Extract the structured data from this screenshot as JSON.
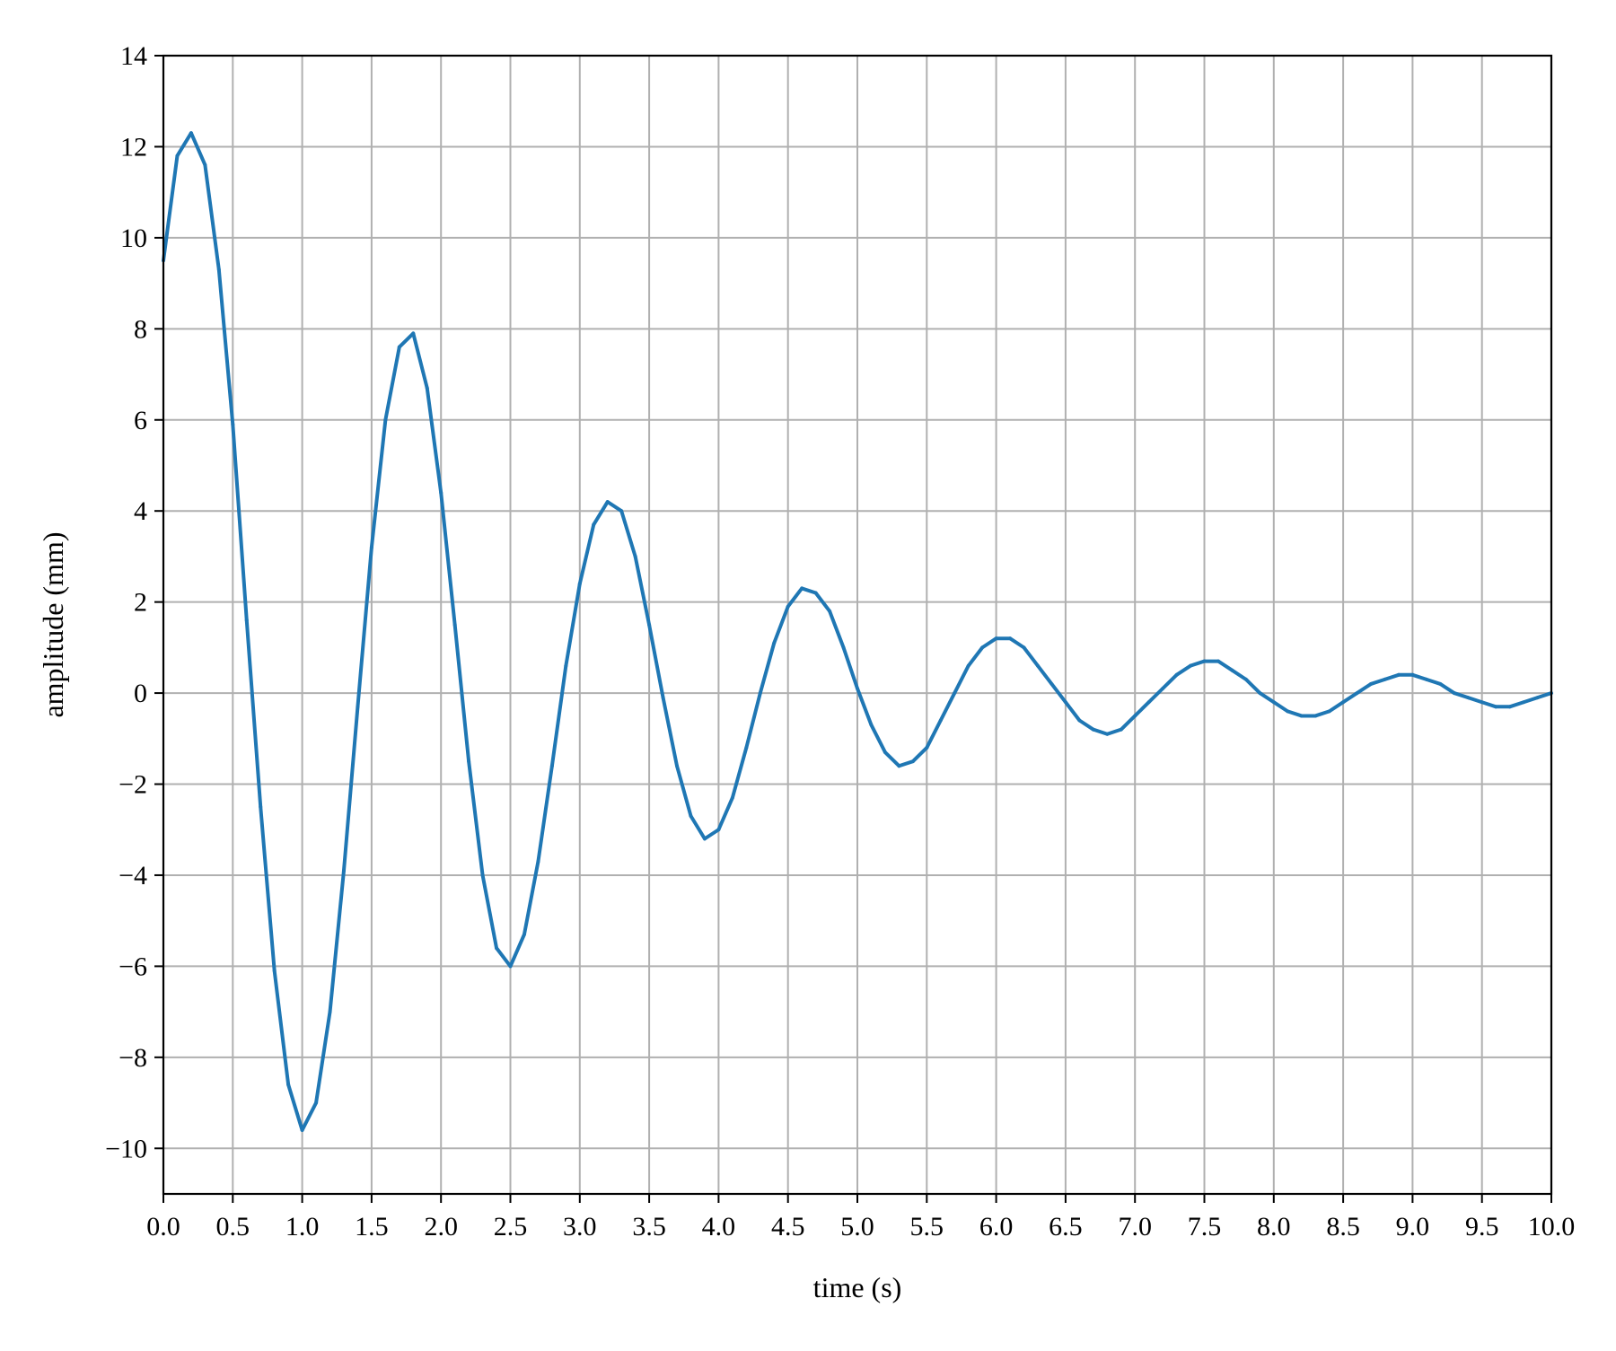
{
  "chart_data": {
    "type": "line",
    "title": "",
    "xlabel": "time (s)",
    "ylabel": "amplitude (mm)",
    "xlim": [
      0,
      10
    ],
    "ylim": [
      -11,
      14
    ],
    "grid": true,
    "legend": "none",
    "x_ticks": [
      "0.0",
      "0.5",
      "1.0",
      "1.5",
      "2.0",
      "2.5",
      "3.0",
      "3.5",
      "4.0",
      "4.5",
      "5.0",
      "5.5",
      "6.0",
      "6.5",
      "7.0",
      "7.5",
      "8.0",
      "8.5",
      "9.0",
      "9.5",
      "10.0"
    ],
    "y_ticks": [
      "14",
      "12",
      "10",
      "8",
      "6",
      "4",
      "2",
      "0",
      "−2",
      "−4",
      "−6",
      "−8",
      "−10"
    ],
    "line_color": "#1f77b4",
    "series": [
      {
        "x": [
          0.0,
          0.1,
          0.2,
          0.3,
          0.4,
          0.5,
          0.6,
          0.7,
          0.8,
          0.9,
          1.0,
          1.1,
          1.2,
          1.3,
          1.4,
          1.5,
          1.6,
          1.7,
          1.8,
          1.9,
          2.0,
          2.1,
          2.2,
          2.3,
          2.4,
          2.5,
          2.6,
          2.7,
          2.8,
          2.9,
          3.0,
          3.1,
          3.2,
          3.3,
          3.4,
          3.5,
          3.6,
          3.7,
          3.8,
          3.9,
          4.0,
          4.1,
          4.2,
          4.3,
          4.4,
          4.5,
          4.6,
          4.7,
          4.8,
          4.9,
          5.0,
          5.1,
          5.2,
          5.3,
          5.4,
          5.5,
          5.6,
          5.7,
          5.8,
          5.9,
          6.0,
          6.1,
          6.2,
          6.3,
          6.4,
          6.5,
          6.6,
          6.7,
          6.8,
          6.9,
          7.0,
          7.1,
          7.2,
          7.3,
          7.4,
          7.5,
          7.6,
          7.7,
          7.8,
          7.9,
          8.0,
          8.1,
          8.2,
          8.3,
          8.4,
          8.5,
          8.6,
          8.7,
          8.8,
          8.9,
          9.0,
          9.1,
          9.2,
          9.3,
          9.4,
          9.5,
          9.6,
          9.7,
          9.8,
          9.9,
          10.0
        ],
        "y": [
          9.5,
          11.8,
          12.3,
          11.6,
          9.3,
          5.9,
          1.6,
          -2.5,
          -6.1,
          -8.6,
          -9.6,
          -9.0,
          -7.0,
          -3.9,
          -0.3,
          3.2,
          6.0,
          7.6,
          7.9,
          6.7,
          4.4,
          1.5,
          -1.5,
          -4.0,
          -5.6,
          -6.0,
          -5.3,
          -3.7,
          -1.6,
          0.6,
          2.4,
          3.7,
          4.2,
          4.0,
          3.0,
          1.5,
          -0.1,
          -1.6,
          -2.7,
          -3.2,
          -3.0,
          -2.3,
          -1.2,
          0.0,
          1.1,
          1.9,
          2.3,
          2.2,
          1.8,
          1.0,
          0.1,
          -0.7,
          -1.3,
          -1.6,
          -1.5,
          -1.2,
          -0.6,
          0.0,
          0.6,
          1.0,
          1.2,
          1.2,
          1.0,
          0.6,
          0.2,
          -0.2,
          -0.6,
          -0.8,
          -0.9,
          -0.8,
          -0.5,
          -0.2,
          0.1,
          0.4,
          0.6,
          0.7,
          0.7,
          0.5,
          0.3,
          0.0,
          -0.2,
          -0.4,
          -0.5,
          -0.5,
          -0.4,
          -0.2,
          0.0,
          0.2,
          0.3,
          0.4,
          0.4,
          0.3,
          0.2,
          0.0,
          -0.1,
          -0.2,
          -0.3,
          -0.3,
          -0.2,
          -0.1,
          0.0
        ]
      }
    ]
  }
}
